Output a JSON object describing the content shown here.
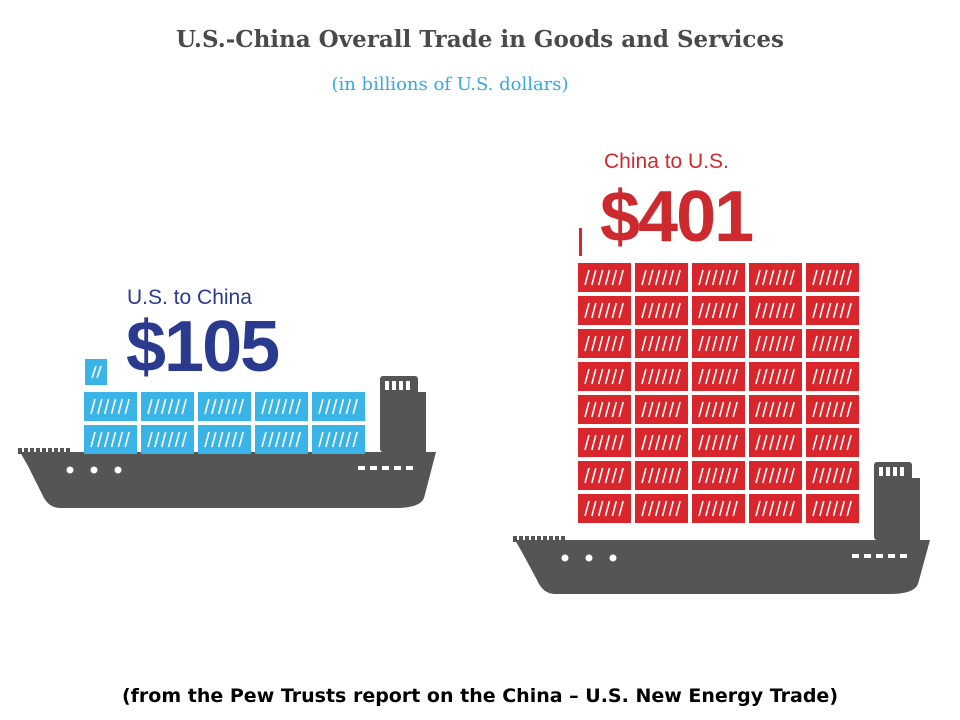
{
  "chart_data": {
    "type": "bar",
    "title": "U.S.-China Overall Trade in Goods and Services",
    "subtitle": "(in billions of U.S. dollars)",
    "categories": [
      "U.S. to China",
      "China to U.S."
    ],
    "values": [
      105,
      401
    ],
    "value_labels": [
      "$105",
      "$401"
    ],
    "colors": [
      "#3ab3e6",
      "#d8262c"
    ],
    "label_colors": [
      "#2a3b8f",
      "#cc2a2e"
    ],
    "hull_color": "#555555"
  },
  "source_note": "(from the Pew Trusts report on the China – U.S. New Energy Trade)"
}
